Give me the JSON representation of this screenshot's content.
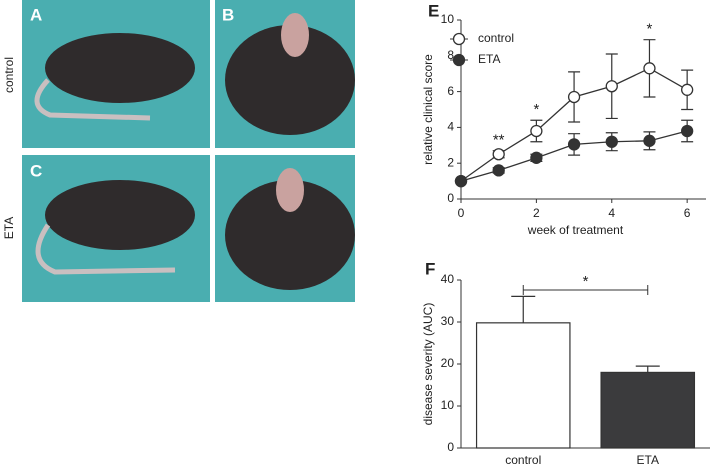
{
  "panels": {
    "labels": [
      "A",
      "B",
      "C"
    ],
    "row_labels": [
      "control",
      "ETA"
    ]
  },
  "chart_data": [
    {
      "type": "line",
      "panel": "E",
      "x_label": "week of treatment",
      "y_label": "relative clinical score",
      "x": [
        0,
        1,
        2,
        3,
        4,
        5,
        6
      ],
      "series": [
        {
          "name": "control",
          "color": "#333333",
          "marker_fill": "#ffffff",
          "values": [
            1,
            2.5,
            3.8,
            5.7,
            6.3,
            7.3,
            6.1
          ],
          "errors": [
            0,
            0.2,
            0.6,
            1.4,
            1.8,
            1.6,
            1.1
          ]
        },
        {
          "name": "ETA",
          "color": "#333333",
          "marker_fill": "#333333",
          "values": [
            1,
            1.6,
            2.3,
            3.05,
            3.2,
            3.25,
            3.8
          ],
          "errors": [
            0,
            0.15,
            0.2,
            0.6,
            0.5,
            0.5,
            0.6
          ]
        }
      ],
      "annotations": [
        {
          "text": "**",
          "x": 1
        },
        {
          "text": "*",
          "x": 2
        },
        {
          "text": "*",
          "x": 5
        }
      ],
      "xlim": [
        0,
        6.5
      ],
      "xticks": [
        0,
        2,
        4,
        6
      ],
      "ylim": [
        0,
        10
      ],
      "yticks": [
        0,
        2,
        4,
        6,
        8,
        10
      ],
      "legend": "upper left"
    },
    {
      "type": "bar",
      "panel": "F",
      "y_label": "disease severity (AUC)",
      "categories": [
        "control",
        "ETA"
      ],
      "values": [
        29.8,
        18
      ],
      "errors": [
        6.3,
        1.5
      ],
      "colors": [
        "#ffffff",
        "#3b3b3d"
      ],
      "annotations": [
        {
          "text": "*"
        }
      ],
      "ylim": [
        0,
        40
      ],
      "yticks": [
        0,
        10,
        20,
        30,
        40
      ]
    }
  ]
}
